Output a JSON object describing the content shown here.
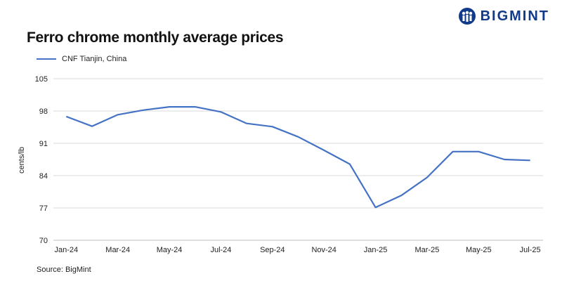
{
  "brand": {
    "name": "BIGMINT",
    "color": "#123a8a"
  },
  "source": "Source: BigMint",
  "chart_data": {
    "type": "line",
    "title": "Ferro chrome monthly average prices",
    "xlabel": "",
    "ylabel": "cents/lb",
    "ylim": [
      70,
      105
    ],
    "yticks": [
      70,
      77,
      84,
      91,
      98,
      105
    ],
    "x": [
      "Jan-24",
      "Feb-24",
      "Mar-24",
      "Apr-24",
      "May-24",
      "Jun-24",
      "Jul-24",
      "Aug-24",
      "Sep-24",
      "Oct-24",
      "Nov-24",
      "Dec-24",
      "Jan-25",
      "Feb-25",
      "Mar-25",
      "Apr-25",
      "May-25",
      "Jun-25",
      "Jul-25"
    ],
    "x_tick_labels": [
      "Jan-24",
      "Mar-24",
      "May-24",
      "Jul-24",
      "Sep-24",
      "Nov-24",
      "Jan-25",
      "Mar-25",
      "May-25",
      "Jul-25"
    ],
    "grid": true,
    "legend_position": "top-left",
    "series": [
      {
        "name": "CNF Tianjin, China",
        "color": "#4472c4",
        "values": [
          96.8,
          94.7,
          97.2,
          98.2,
          98.9,
          98.9,
          97.8,
          95.3,
          94.6,
          92.4,
          89.5,
          86.5,
          77.1,
          79.7,
          83.6,
          89.2,
          89.2,
          87.5,
          87.3
        ]
      }
    ]
  }
}
